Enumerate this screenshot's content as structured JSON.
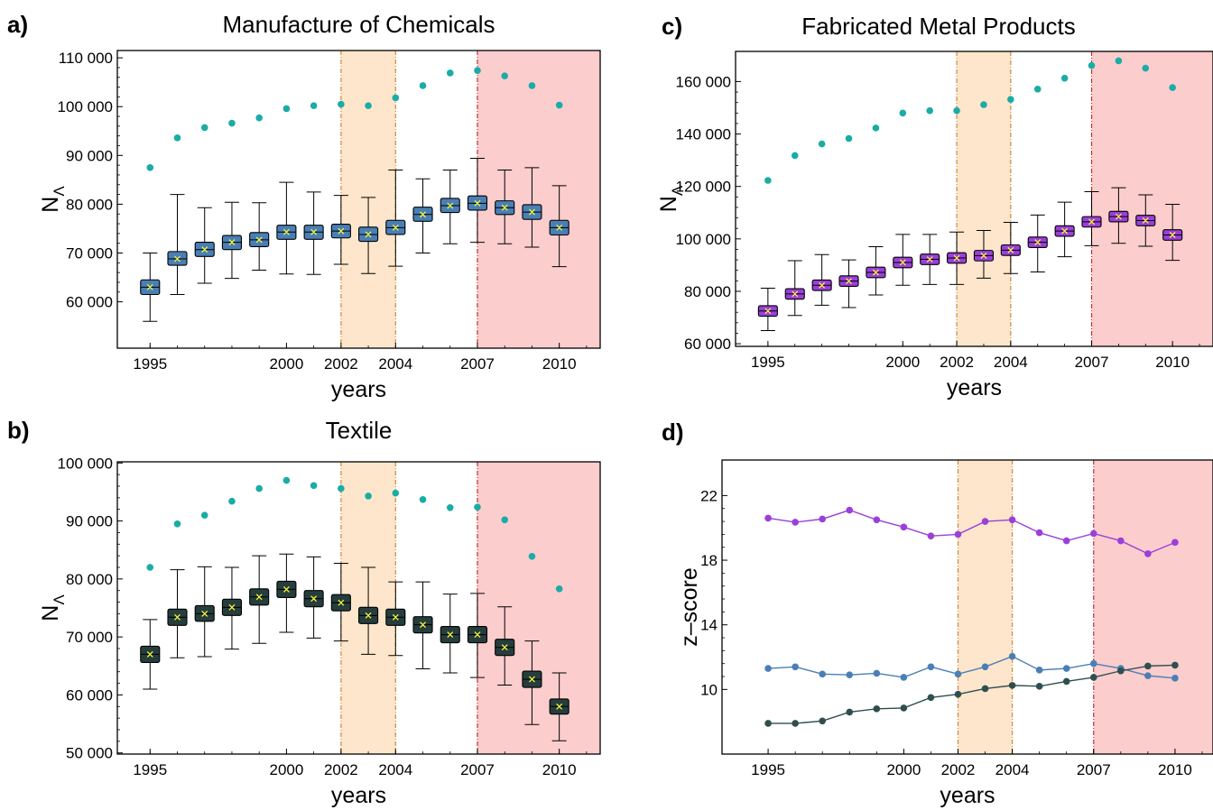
{
  "chart_data": [
    {
      "panel": "a)",
      "type": "box",
      "title": "Manufacture of Chemicals",
      "xlabel": "years",
      "ylabel": "N",
      "ylabel_sub": "Λ",
      "xticks": [
        "1995",
        "2000",
        "2002",
        "2004",
        "2007",
        "2010"
      ],
      "yticks": [
        "60 000",
        "70 000",
        "80 000",
        "90 000",
        "100 000",
        "110 000"
      ],
      "ylim": [
        50500,
        111500
      ],
      "box_color": "#4a7fb5",
      "dot_color": "#1aaca6",
      "years": [
        1995,
        1996,
        1997,
        1998,
        1999,
        2000,
        2001,
        2002,
        2003,
        2004,
        2005,
        2006,
        2007,
        2008,
        2009,
        2010
      ],
      "boxes": [
        {
          "min": 56000,
          "q1": 61500,
          "median": 63000,
          "mean": 63000,
          "q3": 64500,
          "max": 70000
        },
        {
          "min": 61500,
          "q1": 67500,
          "median": 68800,
          "mean": 68800,
          "q3": 70300,
          "max": 82000
        },
        {
          "min": 63800,
          "q1": 69300,
          "median": 70700,
          "mean": 70700,
          "q3": 72200,
          "max": 79300
        },
        {
          "min": 64800,
          "q1": 70700,
          "median": 72200,
          "mean": 72200,
          "q3": 73600,
          "max": 80400
        },
        {
          "min": 66500,
          "q1": 71300,
          "median": 72700,
          "mean": 72700,
          "q3": 74200,
          "max": 80300
        },
        {
          "min": 65700,
          "q1": 72800,
          "median": 74300,
          "mean": 74300,
          "q3": 75700,
          "max": 84500
        },
        {
          "min": 65600,
          "q1": 72800,
          "median": 74300,
          "mean": 74300,
          "q3": 75700,
          "max": 82500
        },
        {
          "min": 67700,
          "q1": 73100,
          "median": 74500,
          "mean": 74500,
          "q3": 75900,
          "max": 81800
        },
        {
          "min": 65800,
          "q1": 72400,
          "median": 73800,
          "mean": 73800,
          "q3": 75300,
          "max": 81400
        },
        {
          "min": 67300,
          "q1": 73800,
          "median": 75200,
          "mean": 75200,
          "q3": 76700,
          "max": 87000
        },
        {
          "min": 70000,
          "q1": 76500,
          "median": 77900,
          "mean": 77900,
          "q3": 79400,
          "max": 85200
        },
        {
          "min": 71900,
          "q1": 78300,
          "median": 79700,
          "mean": 79700,
          "q3": 81200,
          "max": 87000
        },
        {
          "min": 72200,
          "q1": 78800,
          "median": 80200,
          "mean": 80200,
          "q3": 81700,
          "max": 89400
        },
        {
          "min": 71900,
          "q1": 77900,
          "median": 79300,
          "mean": 79300,
          "q3": 80700,
          "max": 87000
        },
        {
          "min": 71200,
          "q1": 76900,
          "median": 78400,
          "mean": 78400,
          "q3": 79900,
          "max": 87500
        },
        {
          "min": 67200,
          "q1": 73700,
          "median": 75200,
          "mean": 75200,
          "q3": 76700,
          "max": 83800
        }
      ],
      "points": [
        87500,
        93600,
        95700,
        96600,
        97700,
        99600,
        100200,
        100500,
        100200,
        101800,
        104300,
        106900,
        107400,
        106300,
        104300,
        100300
      ],
      "shaded": [
        {
          "from": 2002,
          "to": 2004,
          "color": "#fde6cb",
          "edge": "#d08a3e"
        },
        {
          "from": 2007,
          "to": 2011.5,
          "color": "#fccdcd",
          "edge": "#c62d2d"
        }
      ]
    },
    {
      "panel": "b)",
      "type": "box",
      "title": "Textile",
      "xlabel": "years",
      "ylabel": "N",
      "ylabel_sub": "Λ",
      "xticks": [
        "1995",
        "2000",
        "2002",
        "2004",
        "2007",
        "2010"
      ],
      "yticks": [
        "50 000",
        "60 000",
        "70 000",
        "80 000",
        "90 000",
        "100 000"
      ],
      "ylim": [
        49800,
        100200
      ],
      "box_color": "#263d3d",
      "dot_color": "#1aaca6",
      "years": [
        1995,
        1996,
        1997,
        1998,
        1999,
        2000,
        2001,
        2002,
        2003,
        2004,
        2005,
        2006,
        2007,
        2008,
        2009,
        2010
      ],
      "boxes": [
        {
          "min": 61000,
          "q1": 65600,
          "median": 67000,
          "mean": 67000,
          "q3": 68400,
          "max": 73000
        },
        {
          "min": 66400,
          "q1": 72000,
          "median": 73400,
          "mean": 73400,
          "q3": 74800,
          "max": 81600
        },
        {
          "min": 66600,
          "q1": 72700,
          "median": 74000,
          "mean": 74000,
          "q3": 75400,
          "max": 82100
        },
        {
          "min": 67900,
          "q1": 73700,
          "median": 75100,
          "mean": 75100,
          "q3": 76500,
          "max": 82000
        },
        {
          "min": 68900,
          "q1": 75500,
          "median": 76900,
          "mean": 76900,
          "q3": 78300,
          "max": 84000
        },
        {
          "min": 70800,
          "q1": 76800,
          "median": 78200,
          "mean": 78200,
          "q3": 79600,
          "max": 84300
        },
        {
          "min": 69800,
          "q1": 75200,
          "median": 76600,
          "mean": 76600,
          "q3": 78000,
          "max": 83800
        },
        {
          "min": 69300,
          "q1": 74500,
          "median": 75900,
          "mean": 75900,
          "q3": 77300,
          "max": 82700
        },
        {
          "min": 67000,
          "q1": 72300,
          "median": 73700,
          "mean": 73700,
          "q3": 75100,
          "max": 82000
        },
        {
          "min": 66800,
          "q1": 72000,
          "median": 73400,
          "mean": 73400,
          "q3": 74800,
          "max": 79500
        },
        {
          "min": 64500,
          "q1": 70700,
          "median": 72100,
          "mean": 72100,
          "q3": 73500,
          "max": 79500
        },
        {
          "min": 63800,
          "q1": 69000,
          "median": 70400,
          "mean": 70400,
          "q3": 71800,
          "max": 77400
        },
        {
          "min": 63000,
          "q1": 69000,
          "median": 70400,
          "mean": 70400,
          "q3": 71800,
          "max": 77500
        },
        {
          "min": 61700,
          "q1": 66800,
          "median": 68200,
          "mean": 68200,
          "q3": 69600,
          "max": 75200
        },
        {
          "min": 54900,
          "q1": 61300,
          "median": 62700,
          "mean": 62700,
          "q3": 64100,
          "max": 69300
        },
        {
          "min": 52100,
          "q1": 56700,
          "median": 58000,
          "mean": 58000,
          "q3": 59300,
          "max": 63800
        }
      ],
      "points": [
        82000,
        89500,
        91000,
        93400,
        95600,
        97000,
        96100,
        95600,
        94300,
        94800,
        93700,
        92300,
        92400,
        90200,
        83900,
        78300
      ],
      "shaded": [
        {
          "from": 2002,
          "to": 2004,
          "color": "#fde6cb",
          "edge": "#d08a3e"
        },
        {
          "from": 2007,
          "to": 2011.5,
          "color": "#fccdcd",
          "edge": "#c62d2d"
        }
      ]
    },
    {
      "panel": "c)",
      "type": "box",
      "title": "Fabricated Metal Products",
      "xlabel": "years",
      "ylabel": "N",
      "ylabel_sub": "Λ",
      "xticks": [
        "1995",
        "2000",
        "2002",
        "2004",
        "2007",
        "2010"
      ],
      "yticks": [
        "60 000",
        "80 000",
        "100 000",
        "120 000",
        "140 000",
        "160 000"
      ],
      "ylim": [
        59000,
        171500
      ],
      "box_color": "#9a3fd9",
      "dot_color": "#1aaca6",
      "years": [
        1995,
        1996,
        1997,
        1998,
        1999,
        2000,
        2001,
        2002,
        2003,
        2004,
        2005,
        2006,
        2007,
        2008,
        2009,
        2010
      ],
      "boxes": [
        {
          "min": 65000,
          "q1": 70500,
          "median": 72500,
          "mean": 72500,
          "q3": 74500,
          "max": 81200
        },
        {
          "min": 70800,
          "q1": 77000,
          "median": 79000,
          "mean": 79000,
          "q3": 81000,
          "max": 91700
        },
        {
          "min": 74700,
          "q1": 80300,
          "median": 82300,
          "mean": 82300,
          "q3": 84300,
          "max": 94000
        },
        {
          "min": 73800,
          "q1": 81900,
          "median": 83900,
          "mean": 83900,
          "q3": 85900,
          "max": 92000
        },
        {
          "min": 78600,
          "q1": 85200,
          "median": 87200,
          "mean": 87200,
          "q3": 89200,
          "max": 97000
        },
        {
          "min": 82300,
          "q1": 89000,
          "median": 91000,
          "mean": 91000,
          "q3": 93000,
          "max": 101700
        },
        {
          "min": 82600,
          "q1": 90200,
          "median": 92200,
          "mean": 92200,
          "q3": 94200,
          "max": 101700
        },
        {
          "min": 82600,
          "q1": 90700,
          "median": 92700,
          "mean": 92700,
          "q3": 94700,
          "max": 102600
        },
        {
          "min": 85000,
          "q1": 91600,
          "median": 93600,
          "mean": 93600,
          "q3": 95600,
          "max": 103200
        },
        {
          "min": 86800,
          "q1": 93700,
          "median": 95700,
          "mean": 95700,
          "q3": 97700,
          "max": 106300
        },
        {
          "min": 87400,
          "q1": 96700,
          "median": 98700,
          "mean": 98700,
          "q3": 100700,
          "max": 109100
        },
        {
          "min": 93200,
          "q1": 101000,
          "median": 103000,
          "mean": 103000,
          "q3": 105000,
          "max": 114000
        },
        {
          "min": 97400,
          "q1": 104500,
          "median": 106500,
          "mean": 106500,
          "q3": 108500,
          "max": 118000
        },
        {
          "min": 98300,
          "q1": 106500,
          "median": 108500,
          "mean": 108500,
          "q3": 110500,
          "max": 119500
        },
        {
          "min": 97200,
          "q1": 105000,
          "median": 107000,
          "mean": 107000,
          "q3": 109000,
          "max": 116800
        },
        {
          "min": 91800,
          "q1": 99500,
          "median": 101500,
          "mean": 101500,
          "q3": 103500,
          "max": 113200
        }
      ],
      "points": [
        122300,
        131800,
        136200,
        138300,
        142300,
        148000,
        148900,
        148900,
        151200,
        153200,
        157100,
        161300,
        166100,
        167900,
        165100,
        157700
      ],
      "shaded": [
        {
          "from": 2002,
          "to": 2004,
          "color": "#fde6cb",
          "edge": "#d08a3e"
        },
        {
          "from": 2007,
          "to": 2011.5,
          "color": "#fccdcd",
          "edge": "#c62d2d"
        }
      ]
    },
    {
      "panel": "d)",
      "type": "line",
      "title": "",
      "xlabel": "years",
      "ylabel": "z–score",
      "xticks": [
        "1995",
        "2000",
        "2002",
        "2004",
        "2007",
        "2010"
      ],
      "yticks": [
        "10",
        "14",
        "18",
        "22"
      ],
      "ylim": [
        6.0,
        24.2
      ],
      "x": [
        1995,
        1996,
        1997,
        1998,
        1999,
        2000,
        2001,
        2002,
        2003,
        2004,
        2005,
        2006,
        2007,
        2008,
        2009,
        2010
      ],
      "series": [
        {
          "color": "#9a3fd9",
          "values": [
            20.6,
            20.35,
            20.55,
            21.1,
            20.5,
            20.05,
            19.5,
            19.6,
            20.4,
            20.5,
            19.7,
            19.2,
            19.65,
            19.2,
            18.4,
            19.1
          ]
        },
        {
          "color": "#4a7fb5",
          "values": [
            11.3,
            11.4,
            10.95,
            10.9,
            11.0,
            10.75,
            11.4,
            10.95,
            11.4,
            12.05,
            11.2,
            11.3,
            11.6,
            11.3,
            10.85,
            10.7
          ]
        },
        {
          "color": "#2f4f4f",
          "values": [
            7.9,
            7.9,
            8.05,
            8.6,
            8.8,
            8.85,
            9.5,
            9.7,
            10.05,
            10.25,
            10.2,
            10.5,
            10.75,
            11.15,
            11.45,
            11.5
          ]
        }
      ],
      "shaded": [
        {
          "from": 2002,
          "to": 2004,
          "color": "#fde6cb",
          "edge": "#d08a3e"
        },
        {
          "from": 2007,
          "to": 2011.5,
          "color": "#fccdcd",
          "edge": "#c62d2d"
        }
      ]
    }
  ]
}
